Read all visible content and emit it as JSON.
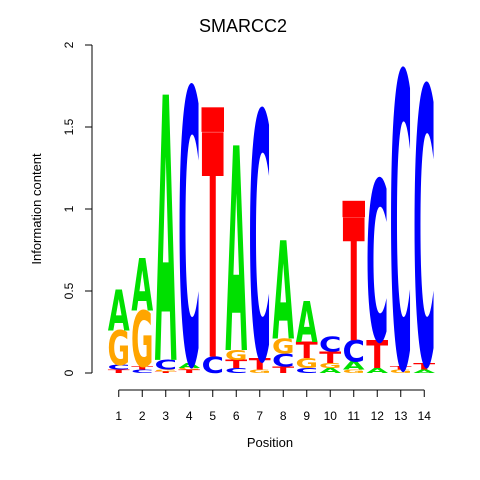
{
  "chart_data": {
    "type": "sequence-logo",
    "title": "SMARCC2",
    "xlabel": "Position",
    "ylabel": "Information content",
    "ylim": [
      0,
      2
    ],
    "yticks": [
      "0",
      "0.5",
      "1",
      "1.5",
      "2"
    ],
    "categories": [
      "1",
      "2",
      "3",
      "4",
      "5",
      "6",
      "7",
      "8",
      "9",
      "10",
      "11",
      "12",
      "13",
      "14"
    ],
    "colors": {
      "A": "#00e000",
      "C": "#0000ff",
      "G": "#ffa500",
      "T": "#ff0000"
    },
    "positions": [
      {
        "pos": "1",
        "letters": [
          {
            "b": "T",
            "h": 0.02
          },
          {
            "b": "C",
            "h": 0.03
          },
          {
            "b": "G",
            "h": 0.21
          },
          {
            "b": "A",
            "h": 0.25
          }
        ]
      },
      {
        "pos": "2",
        "letters": [
          {
            "b": "C",
            "h": 0.02
          },
          {
            "b": "T",
            "h": 0.02
          },
          {
            "b": "G",
            "h": 0.34
          },
          {
            "b": "A",
            "h": 0.32
          }
        ]
      },
      {
        "pos": "3",
        "letters": [
          {
            "b": "T",
            "h": 0.01
          },
          {
            "b": "G",
            "h": 0.01
          },
          {
            "b": "C",
            "h": 0.06
          },
          {
            "b": "A",
            "h": 1.62
          }
        ]
      },
      {
        "pos": "4",
        "letters": [
          {
            "b": "T",
            "h": 0.02
          },
          {
            "b": "G",
            "h": 0.01
          },
          {
            "b": "A",
            "h": 0.03
          },
          {
            "b": "C",
            "h": 1.68
          }
        ]
      },
      {
        "pos": "5",
        "letters": [
          {
            "b": "C",
            "h": 0.1
          },
          {
            "b": "T",
            "h": 1.37
          },
          {
            "b": "T",
            "h": 0.15,
            "box": true
          }
        ]
      },
      {
        "pos": "6",
        "letters": [
          {
            "b": "C",
            "h": 0.03
          },
          {
            "b": "T",
            "h": 0.05
          },
          {
            "b": "G",
            "h": 0.06
          },
          {
            "b": "A",
            "h": 1.25
          }
        ]
      },
      {
        "pos": "7",
        "letters": [
          {
            "b": "G",
            "h": 0.02
          },
          {
            "b": "T",
            "h": 0.07
          },
          {
            "b": "C",
            "h": 1.51
          }
        ]
      },
      {
        "pos": "8",
        "letters": [
          {
            "b": "T",
            "h": 0.04
          },
          {
            "b": "C",
            "h": 0.08
          },
          {
            "b": "G",
            "h": 0.09
          },
          {
            "b": "A",
            "h": 0.6
          }
        ]
      },
      {
        "pos": "9",
        "letters": [
          {
            "b": "C",
            "h": 0.03
          },
          {
            "b": "G",
            "h": 0.06
          },
          {
            "b": "T",
            "h": 0.1
          },
          {
            "b": "A",
            "h": 0.25
          }
        ]
      },
      {
        "pos": "10",
        "letters": [
          {
            "b": "A",
            "h": 0.03
          },
          {
            "b": "G",
            "h": 0.03
          },
          {
            "b": "T",
            "h": 0.07
          },
          {
            "b": "C",
            "h": 0.09
          }
        ]
      },
      {
        "pos": "11",
        "letters": [
          {
            "b": "G",
            "h": 0.02
          },
          {
            "b": "A",
            "h": 0.05
          },
          {
            "b": "C",
            "h": 0.13
          },
          {
            "b": "T",
            "h": 0.75
          },
          {
            "b": "T",
            "h": 0.1,
            "box": true
          }
        ]
      },
      {
        "pos": "12",
        "letters": [
          {
            "b": "A",
            "h": 0.03
          },
          {
            "b": "T",
            "h": 0.17
          },
          {
            "b": "C",
            "h": 0.98
          }
        ]
      },
      {
        "pos": "13",
        "letters": [
          {
            "b": "G",
            "h": 0.02
          },
          {
            "b": "T",
            "h": 0.02
          },
          {
            "b": "C",
            "h": 1.8
          }
        ]
      },
      {
        "pos": "14",
        "letters": [
          {
            "b": "A",
            "h": 0.02
          },
          {
            "b": "T",
            "h": 0.04
          },
          {
            "b": "C",
            "h": 1.69
          }
        ]
      }
    ]
  }
}
